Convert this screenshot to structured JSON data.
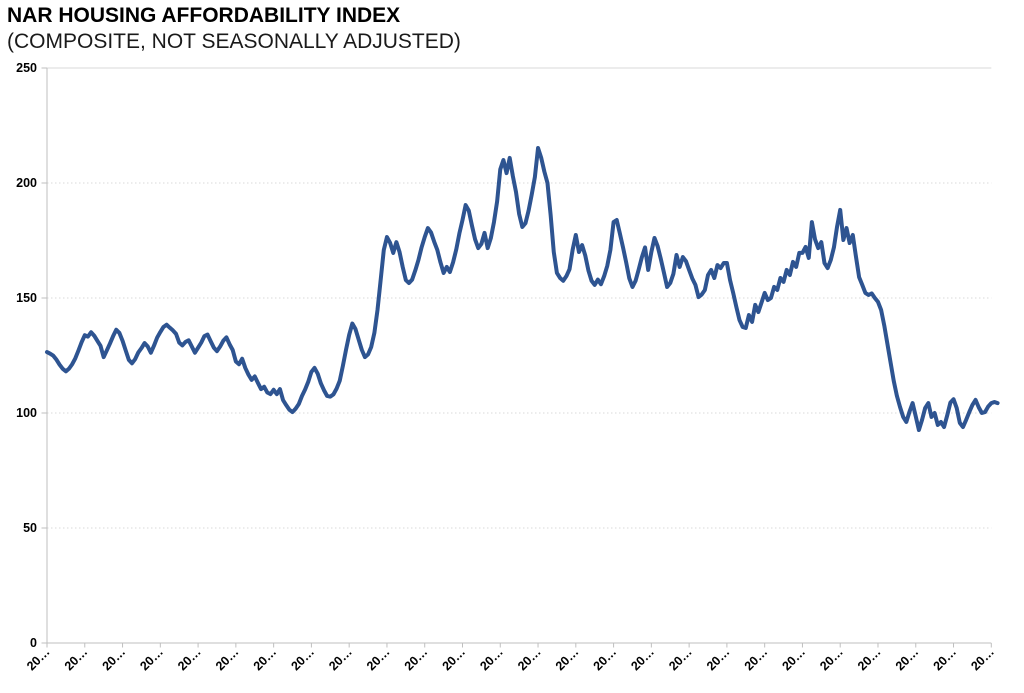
{
  "title": "NAR HOUSING AFFORDABILITY INDEX",
  "subtitle": "(COMPOSITE, NOT SEASONALLY ADJUSTED)",
  "chart_data": {
    "type": "line",
    "title": "NAR HOUSING AFFORDABILITY INDEX (COMPOSITE, NOT SEASONALLY ADJUSTED)",
    "xlabel": "",
    "ylabel": "",
    "ylim": [
      0,
      250
    ],
    "y_ticks": [
      0,
      50,
      100,
      150,
      200,
      250
    ],
    "x_tick_label": "20…",
    "x_tick_count": 26,
    "grid": "horizontal dotted major gridlines",
    "legend": "none",
    "series": [
      {
        "name": "Housing Affordability Index (Composite, Not Seasonally Adjusted)",
        "frequency": "monthly",
        "values": [
          126.5,
          125.8,
          124.9,
          123.2,
          121.0,
          119.2,
          118.1,
          119.3,
          121.2,
          123.8,
          127.2,
          130.8,
          133.8,
          133.2,
          135.1,
          133.6,
          131.4,
          129.2,
          124.3,
          127.2,
          130.2,
          133.4,
          136.2,
          134.8,
          131.4,
          127.2,
          123.1,
          121.6,
          123.4,
          126.3,
          128.2,
          130.4,
          128.9,
          126.2,
          129.3,
          132.8,
          135.2,
          137.4,
          138.4,
          137.1,
          135.9,
          134.4,
          130.6,
          129.4,
          130.9,
          131.6,
          128.9,
          126.2,
          128.4,
          130.6,
          133.4,
          134.1,
          131.2,
          128.4,
          126.9,
          128.9,
          131.4,
          132.9,
          129.9,
          127.4,
          122.4,
          121.2,
          123.6,
          119.6,
          116.7,
          114.4,
          115.9,
          113.1,
          110.4,
          111.4,
          108.9,
          108.2,
          110.1,
          108.2,
          110.4,
          105.6,
          103.4,
          101.4,
          100.4,
          101.9,
          103.9,
          107.4,
          110.2,
          113.6,
          117.9,
          119.6,
          117.1,
          112.9,
          109.9,
          107.4,
          107.1,
          108.1,
          110.6,
          114.0,
          120.5,
          127.5,
          134.0,
          138.9,
          136.5,
          132.0,
          127.5,
          124.3,
          125.5,
          128.7,
          134.8,
          144.8,
          157.8,
          170.9,
          176.5,
          174.0,
          169.6,
          174.3,
          170.0,
          163.5,
          157.8,
          156.5,
          158.0,
          162.0,
          166.5,
          172.0,
          176.5,
          180.4,
          178.5,
          174.5,
          170.9,
          165.5,
          160.9,
          163.5,
          161.3,
          165.5,
          171.0,
          178.0,
          183.9,
          190.4,
          188.0,
          181.5,
          175.5,
          171.7,
          173.5,
          178.3,
          171.7,
          176.0,
          183.0,
          192.0,
          205.9,
          210.0,
          204.3,
          210.9,
          203.0,
          196.1,
          186.5,
          180.9,
          182.5,
          188.0,
          195.0,
          202.6,
          215.2,
          211.0,
          205.0,
          200.0,
          186.1,
          170.0,
          160.9,
          158.7,
          157.5,
          159.5,
          162.5,
          171.0,
          177.4,
          170.0,
          173.0,
          168.5,
          162.0,
          157.5,
          155.7,
          158.0,
          156.0,
          159.5,
          164.0,
          171.0,
          183.0,
          183.9,
          178.0,
          172.0,
          165.5,
          158.5,
          154.8,
          157.5,
          162.5,
          167.8,
          172.0,
          162.2,
          170.0,
          176.1,
          172.5,
          167.0,
          161.0,
          154.8,
          156.5,
          160.5,
          168.7,
          163.5,
          167.8,
          166.0,
          162.2,
          158.5,
          155.7,
          150.4,
          151.5,
          153.5,
          160.0,
          162.2,
          158.7,
          164.3,
          163.0,
          165.2,
          165.2,
          157.8,
          152.2,
          146.1,
          140.4,
          137.4,
          137.0,
          142.6,
          139.6,
          147.0,
          143.9,
          148.0,
          152.2,
          149.1,
          150.0,
          154.8,
          153.5,
          158.7,
          157.0,
          162.2,
          160.0,
          165.7,
          163.5,
          169.6,
          169.6,
          172.2,
          167.4,
          183.0,
          175.5,
          171.7,
          174.3,
          165.2,
          163.0,
          166.5,
          172.0,
          181.0,
          188.3,
          175.2,
          180.4,
          173.9,
          177.4,
          168.0,
          159.1,
          155.7,
          152.2,
          151.3,
          152.0,
          150.0,
          148.3,
          144.8,
          138.0,
          130.0,
          122.0,
          114.0,
          107.5,
          102.6,
          98.3,
          96.1,
          100.5,
          104.3,
          98.5,
          92.6,
          97.0,
          102.2,
          104.3,
          98.3,
          100.0,
          94.8,
          96.1,
          93.9,
          99.0,
          104.5,
          106.0,
          102.2,
          95.7,
          93.9,
          97.0,
          100.4,
          103.5,
          105.7,
          102.5,
          100.0,
          100.4,
          102.8,
          104.3,
          104.8,
          104.3
        ]
      }
    ],
    "colors": {
      "line": "#2E5491",
      "axis": "#BFBFBF",
      "gridline": "#D9D9D9",
      "text": "#000000",
      "background": "#FFFFFF"
    }
  }
}
